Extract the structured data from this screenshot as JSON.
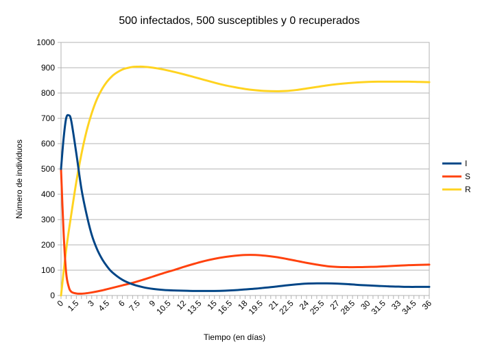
{
  "chart_data": {
    "type": "line",
    "title": "500 infectados, 500 susceptibles y 0 recuperados",
    "xlabel": "Tiempo (en días)",
    "ylabel": "Número de individuos",
    "xlim": [
      0,
      36
    ],
    "ylim": [
      0,
      1000
    ],
    "y_ticks": [
      "0",
      "100",
      "200",
      "300",
      "400",
      "500",
      "600",
      "700",
      "800",
      "900",
      "1000"
    ],
    "x_tick_labels": [
      "0",
      "1.5",
      "3",
      "4.5",
      "6",
      "7.5",
      "9",
      "10.5",
      "12",
      "13.5",
      "15",
      "16.5",
      "18",
      "19.5",
      "21",
      "22.5",
      "24",
      "25.5",
      "27",
      "28.5",
      "30",
      "31.5",
      "33",
      "34.5",
      "36"
    ],
    "grid": "horizontal",
    "legend_position": "right",
    "series": [
      {
        "name": "I",
        "color": "#004586",
        "x": [
          0,
          0.25,
          0.5,
          0.75,
          1,
          1.5,
          2,
          2.5,
          3,
          3.5,
          4,
          4.5,
          5,
          6,
          7,
          8,
          9,
          10,
          11,
          12,
          13,
          14,
          15,
          16,
          17,
          18,
          19,
          20,
          21,
          22,
          23,
          24,
          25,
          26,
          27,
          28,
          29,
          30,
          31,
          32,
          33,
          34,
          35,
          36
        ],
        "y": [
          500,
          620,
          700,
          712,
          690,
          560,
          420,
          320,
          240,
          185,
          145,
          115,
          92,
          62,
          44,
          33,
          26,
          22,
          20,
          19,
          18,
          18,
          18,
          19,
          21,
          24,
          27,
          31,
          35,
          40,
          44,
          47,
          48,
          48,
          47,
          45,
          42,
          40,
          38,
          36,
          35,
          34,
          34,
          34
        ]
      },
      {
        "name": "S",
        "color": "#ff420e",
        "x": [
          0,
          0.25,
          0.5,
          0.75,
          1,
          1.5,
          2,
          2.5,
          3,
          4,
          5,
          6,
          7,
          8,
          9,
          10,
          11,
          12,
          13,
          14,
          15,
          16,
          17,
          18,
          19,
          20,
          21,
          22,
          23,
          24,
          25,
          26,
          27,
          28,
          29,
          30,
          31,
          32,
          33,
          34,
          35,
          36
        ],
        "y": [
          500,
          250,
          90,
          35,
          15,
          8,
          7,
          9,
          12,
          20,
          30,
          40,
          50,
          62,
          75,
          88,
          100,
          113,
          125,
          136,
          145,
          152,
          157,
          160,
          160,
          157,
          152,
          145,
          137,
          129,
          122,
          116,
          113,
          112,
          112,
          113,
          114,
          116,
          118,
          120,
          121,
          122
        ]
      },
      {
        "name": "R",
        "color": "#ffd320",
        "x": [
          0,
          0.5,
          1,
          1.5,
          2,
          2.5,
          3,
          3.5,
          4,
          4.5,
          5,
          5.5,
          6,
          6.5,
          7,
          7.5,
          8,
          9,
          10,
          11,
          12,
          13,
          14,
          15,
          16,
          17,
          18,
          19,
          20,
          21,
          22,
          23,
          24,
          25,
          26,
          27,
          28,
          29,
          30,
          31,
          32,
          33,
          34,
          35,
          36
        ],
        "y": [
          0,
          180,
          320,
          450,
          560,
          650,
          720,
          775,
          815,
          845,
          867,
          882,
          893,
          899,
          903,
          904,
          904,
          900,
          893,
          884,
          874,
          863,
          852,
          841,
          831,
          823,
          816,
          811,
          808,
          807,
          808,
          812,
          818,
          824,
          830,
          835,
          839,
          842,
          844,
          845,
          845,
          845,
          845,
          844,
          843
        ]
      }
    ]
  }
}
